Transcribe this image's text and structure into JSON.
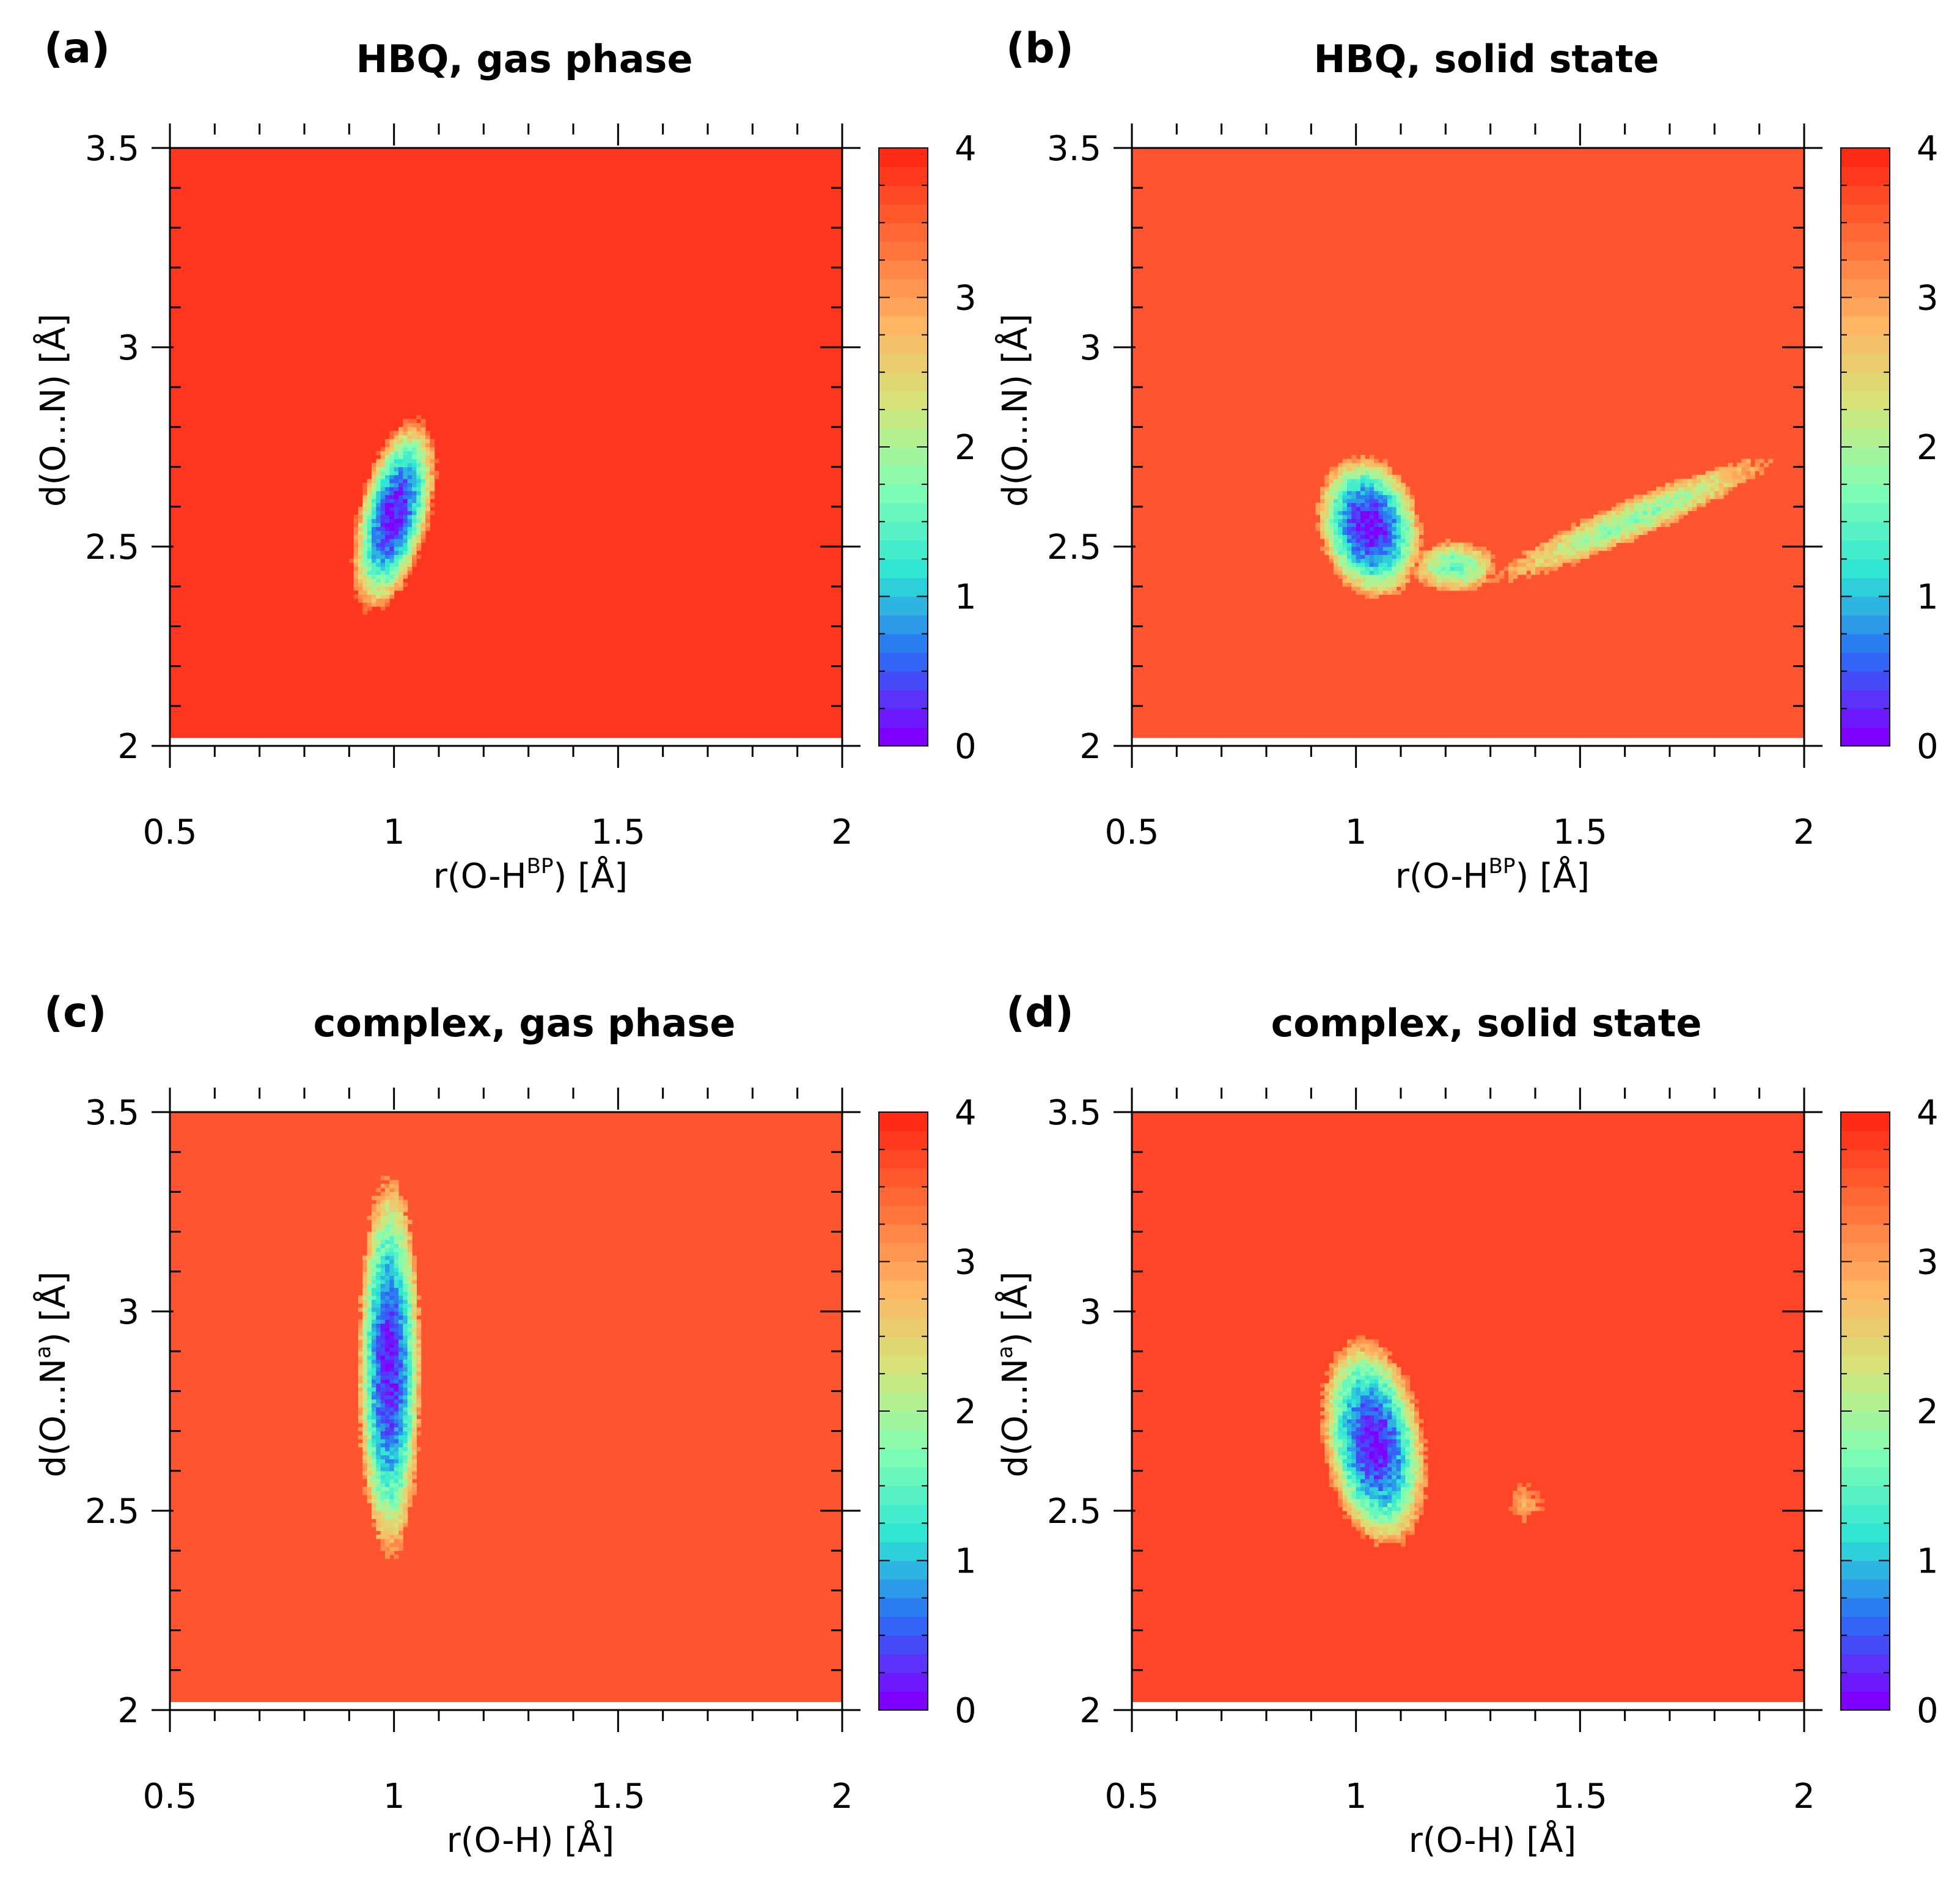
{
  "figure": {
    "panels_count": 4
  },
  "colorbar": {
    "range": [
      0,
      4
    ],
    "ticks": [
      "0",
      "1",
      "2",
      "3",
      "4"
    ],
    "levels": 32,
    "colors": [
      "#8000ff",
      "#2b6ff4",
      "#2ee6d4",
      "#80ffb4",
      "#d4e67a",
      "#ffb462",
      "#ff6e38",
      "#ff2a14"
    ]
  },
  "chart_data": [
    {
      "type": "heatmap",
      "panel_label": "(a)",
      "title": "HBQ, gas phase",
      "xlabel_main": "r(O-H",
      "xlabel_sup": "BP",
      "xlabel_end": ") [Å]",
      "ylabel_main": "d(O...N) [Å]",
      "ylabel_sup": "",
      "ylabel_end": "",
      "xlim": [
        0.5,
        2.0
      ],
      "ylim": [
        2.0,
        3.5
      ],
      "x_ticks": [
        "0.5",
        "1",
        "1.5",
        "2"
      ],
      "y_ticks": [
        "2",
        "2.5",
        "3",
        "3.5"
      ],
      "data_ylim": [
        2.02,
        3.5
      ],
      "background_value": 3.9,
      "background_color": "#ff361f",
      "basins": [
        {
          "x": 1.0,
          "y": 2.58,
          "rx": 0.085,
          "ry": 0.26,
          "rot": -12,
          "tilt": 0,
          "min": 0.15
        }
      ]
    },
    {
      "type": "heatmap",
      "panel_label": "(b)",
      "title": "HBQ, solid state",
      "xlabel_main": "r(O-H",
      "xlabel_sup": "BP",
      "xlabel_end": ") [Å]",
      "ylabel_main": "d(O...N) [Å]",
      "ylabel_sup": "",
      "ylabel_end": "",
      "xlim": [
        0.5,
        2.0
      ],
      "ylim": [
        2.0,
        3.5
      ],
      "x_ticks": [
        "0.5",
        "1",
        "1.5",
        "2"
      ],
      "y_ticks": [
        "2",
        "2.5",
        "3",
        "3.5"
      ],
      "data_ylim": [
        2.02,
        3.5
      ],
      "background_value": 3.6,
      "background_color": "#ff5430",
      "basins": [
        {
          "x": 1.03,
          "y": 2.55,
          "rx": 0.12,
          "ry": 0.19,
          "rot": 10,
          "tilt": 0,
          "min": 0.1
        },
        {
          "x": 1.22,
          "y": 2.45,
          "rx": 0.1,
          "ry": 0.07,
          "rot": 0,
          "tilt": 0,
          "min": 1.6
        },
        {
          "x": 1.62,
          "y": 2.57,
          "rx": 0.33,
          "ry": 0.06,
          "rot": 0,
          "tilt": 0.48,
          "min": 1.8
        }
      ]
    },
    {
      "type": "heatmap",
      "panel_label": "(c)",
      "title": "complex, gas phase",
      "xlabel_main": "r(O-H) [Å]",
      "xlabel_sup": "",
      "xlabel_end": "",
      "ylabel_main": "d(O...N",
      "ylabel_sup": "a",
      "ylabel_end": ") [Å]",
      "xlim": [
        0.5,
        2.0
      ],
      "ylim": [
        2.0,
        3.5
      ],
      "x_ticks": [
        "0.5",
        "1",
        "1.5",
        "2"
      ],
      "y_ticks": [
        "2",
        "2.5",
        "3",
        "3.5"
      ],
      "data_ylim": [
        2.02,
        3.5
      ],
      "background_value": 3.6,
      "background_color": "#ff5430",
      "basins": [
        {
          "x": 0.99,
          "y": 2.86,
          "rx": 0.075,
          "ry": 0.5,
          "rot": 0,
          "tilt": 0,
          "min": 0.2
        }
      ]
    },
    {
      "type": "heatmap",
      "panel_label": "(d)",
      "title": "complex, solid state",
      "xlabel_main": "r(O-H) [Å]",
      "xlabel_sup": "",
      "xlabel_end": "",
      "ylabel_main": "d(O...N",
      "ylabel_sup": "a",
      "ylabel_end": ") [Å]",
      "xlim": [
        0.5,
        2.0
      ],
      "ylim": [
        2.0,
        3.5
      ],
      "x_ticks": [
        "0.5",
        "1",
        "1.5",
        "2"
      ],
      "y_ticks": [
        "2",
        "2.5",
        "3",
        "3.5"
      ],
      "data_ylim": [
        2.02,
        3.5
      ],
      "background_value": 3.75,
      "background_color": "#ff4528",
      "basins": [
        {
          "x": 1.04,
          "y": 2.67,
          "rx": 0.12,
          "ry": 0.28,
          "rot": 8,
          "tilt": 0,
          "min": 0.15
        },
        {
          "x": 1.38,
          "y": 2.52,
          "rx": 0.04,
          "ry": 0.06,
          "rot": 0,
          "tilt": 0,
          "min": 2.9
        }
      ]
    }
  ]
}
